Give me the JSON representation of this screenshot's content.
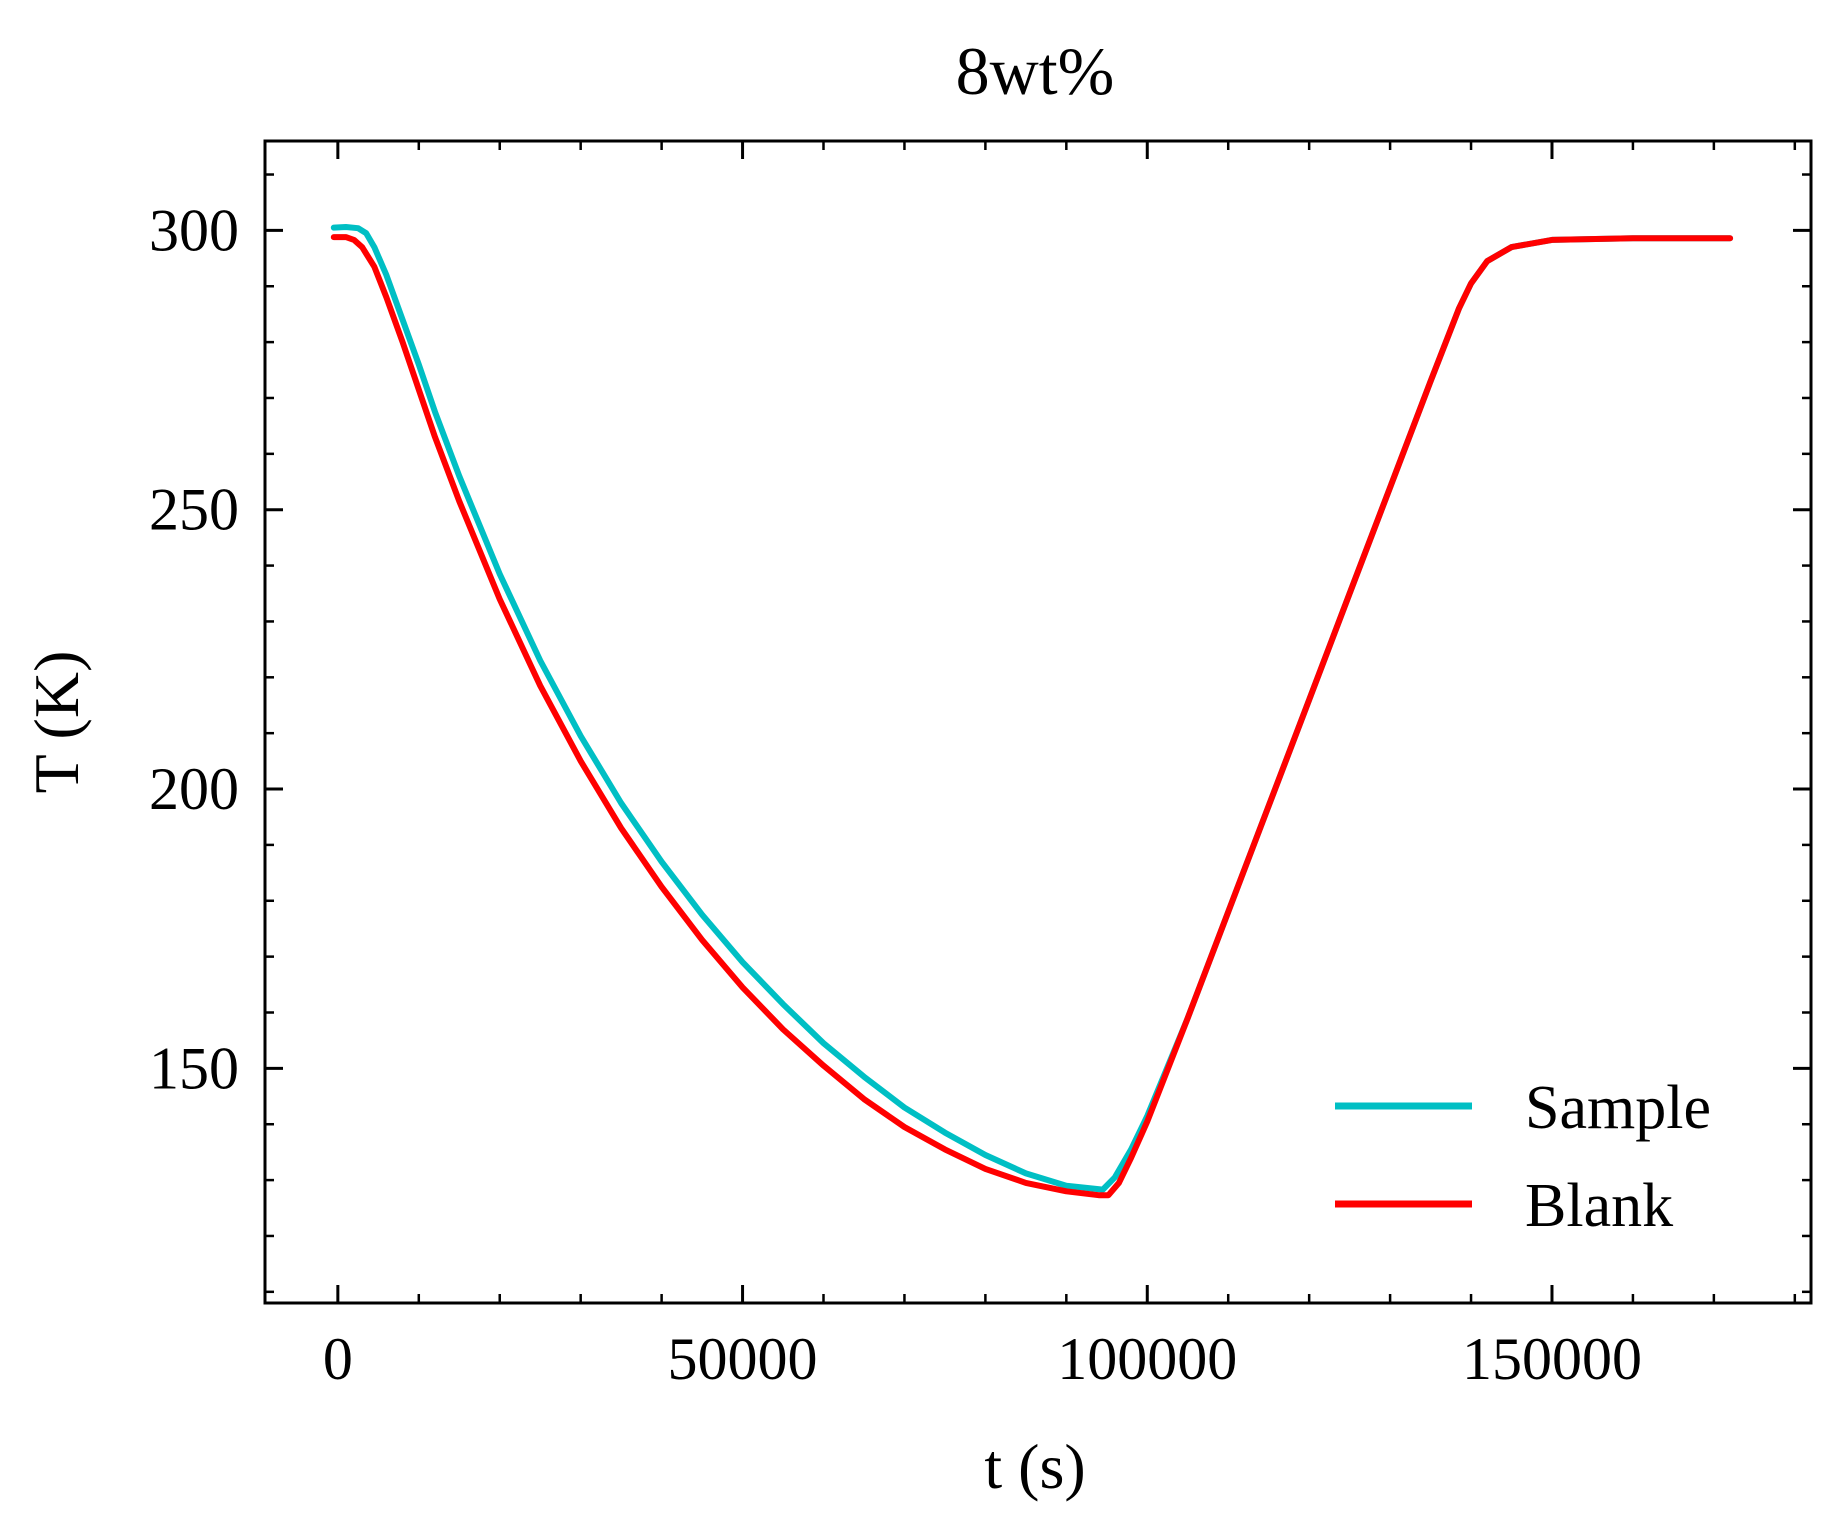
{
  "chart_data": {
    "type": "line",
    "title": "8wt%",
    "xlabel": "t (s)",
    "ylabel": "T (K)",
    "xlim": [
      -9000,
      182000
    ],
    "ylim": [
      108,
      316
    ],
    "x_major_ticks": [
      0,
      50000,
      100000,
      150000
    ],
    "x_tick_labels": [
      "0",
      "50000",
      "100000",
      "150000"
    ],
    "x_minor_step": 10000,
    "y_major_ticks": [
      150,
      200,
      250,
      300
    ],
    "y_tick_labels": [
      "150",
      "200",
      "250",
      "300"
    ],
    "y_minor_step": 10,
    "grid": false,
    "legend_position": "bottom-right",
    "series": [
      {
        "name": "Sample",
        "color": "#00BFC4",
        "points": [
          [
            -500,
            300.5
          ],
          [
            1000,
            300.6
          ],
          [
            2500,
            300.4
          ],
          [
            3500,
            299.5
          ],
          [
            4500,
            297
          ],
          [
            6000,
            292
          ],
          [
            8000,
            284
          ],
          [
            10000,
            276
          ],
          [
            12000,
            267.5
          ],
          [
            15000,
            256
          ],
          [
            20000,
            238.5
          ],
          [
            25000,
            223
          ],
          [
            30000,
            209.5
          ],
          [
            35000,
            197.5
          ],
          [
            40000,
            187
          ],
          [
            45000,
            177.5
          ],
          [
            50000,
            169
          ],
          [
            55000,
            161.5
          ],
          [
            60000,
            154.5
          ],
          [
            65000,
            148.5
          ],
          [
            70000,
            143
          ],
          [
            75000,
            138.5
          ],
          [
            80000,
            134.5
          ],
          [
            85000,
            131.2
          ],
          [
            90000,
            129
          ],
          [
            94500,
            128.3
          ],
          [
            96000,
            130.5
          ],
          [
            98000,
            135.5
          ],
          [
            100000,
            141.5
          ],
          [
            105000,
            159
          ],
          [
            110000,
            178
          ],
          [
            115000,
            197
          ],
          [
            120000,
            216
          ],
          [
            125000,
            235
          ],
          [
            130000,
            254
          ],
          [
            135000,
            273
          ],
          [
            138500,
            286
          ],
          [
            140000,
            290.5
          ],
          [
            142000,
            294.5
          ],
          [
            145000,
            297
          ],
          [
            150000,
            298.3
          ],
          [
            160000,
            298.6
          ],
          [
            172000,
            298.6
          ]
        ]
      },
      {
        "name": "Blank",
        "color": "#FF0000",
        "points": [
          [
            -500,
            298.8
          ],
          [
            1000,
            298.8
          ],
          [
            2000,
            298.3
          ],
          [
            3000,
            297
          ],
          [
            4500,
            293.5
          ],
          [
            6000,
            288
          ],
          [
            8000,
            280
          ],
          [
            10000,
            271.5
          ],
          [
            12000,
            263
          ],
          [
            15000,
            251.5
          ],
          [
            20000,
            234
          ],
          [
            25000,
            218.5
          ],
          [
            30000,
            205
          ],
          [
            35000,
            193
          ],
          [
            40000,
            182.5
          ],
          [
            45000,
            173
          ],
          [
            50000,
            164.5
          ],
          [
            55000,
            157
          ],
          [
            60000,
            150.5
          ],
          [
            65000,
            144.5
          ],
          [
            70000,
            139.5
          ],
          [
            75000,
            135.5
          ],
          [
            80000,
            132
          ],
          [
            85000,
            129.5
          ],
          [
            90000,
            128
          ],
          [
            94000,
            127.3
          ],
          [
            95200,
            127.3
          ],
          [
            96500,
            129.5
          ],
          [
            98000,
            134
          ],
          [
            100000,
            140.5
          ],
          [
            105000,
            159
          ],
          [
            110000,
            178
          ],
          [
            115000,
            197
          ],
          [
            120000,
            216
          ],
          [
            125000,
            235
          ],
          [
            130000,
            254
          ],
          [
            135000,
            273
          ],
          [
            138500,
            286
          ],
          [
            140000,
            290.5
          ],
          [
            142000,
            294.5
          ],
          [
            145000,
            297
          ],
          [
            150000,
            298.3
          ],
          [
            160000,
            298.6
          ],
          [
            172000,
            298.6
          ]
        ]
      }
    ]
  }
}
